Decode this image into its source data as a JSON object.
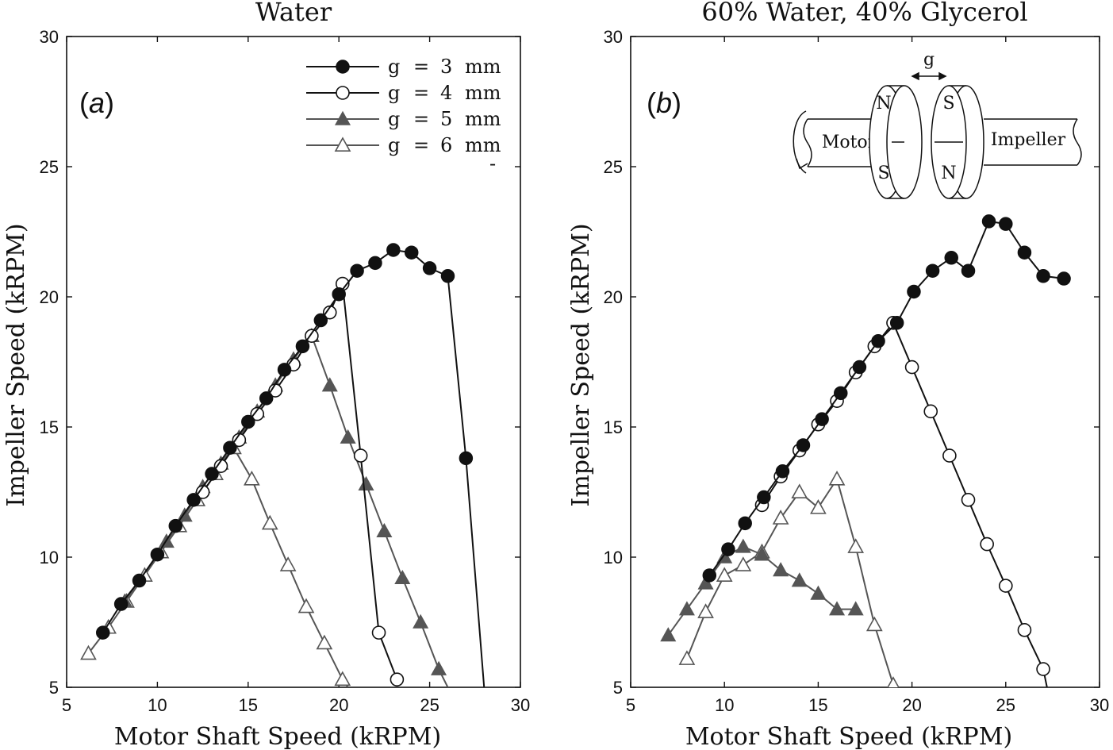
{
  "chart_data": [
    {
      "type": "line",
      "panel": "(a)",
      "panel_letter": "a",
      "title": "Water",
      "xlabel": "Motor Shaft Speed (kRPM)",
      "ylabel": "Impeller Speed (kRPM)",
      "xlim": [
        5,
        30
      ],
      "ylim": [
        5,
        30
      ],
      "xticks": [
        5,
        10,
        15,
        20,
        25,
        30
      ],
      "yticks": [
        5,
        10,
        15,
        20,
        25,
        30
      ],
      "legend": {
        "position": "top-right",
        "minus_glyph": "-"
      },
      "series": [
        {
          "name": "g = 3 mm",
          "g": "g",
          "eq": "=",
          "num": "3",
          "unit": "mm",
          "marker": "filled-circle",
          "color": "#111111",
          "x": [
            7,
            8,
            9,
            10,
            11,
            12,
            13,
            14,
            15,
            16,
            17,
            18,
            19,
            20,
            21,
            22,
            23,
            24,
            25,
            26,
            27,
            28
          ],
          "y": [
            7.1,
            8.2,
            9.1,
            10.1,
            11.2,
            12.2,
            13.2,
            14.2,
            15.2,
            16.1,
            17.2,
            18.1,
            19.1,
            20.1,
            21.0,
            21.3,
            21.8,
            21.7,
            21.1,
            20.8,
            13.8,
            5.0
          ]
        },
        {
          "name": "g = 4 mm",
          "g": "g",
          "eq": "=",
          "num": "4",
          "unit": "mm",
          "marker": "open-circle",
          "color": "#111111",
          "x": [
            12.5,
            13.5,
            14.5,
            15.5,
            16.5,
            17.5,
            18.5,
            19.5,
            20.2,
            21.2,
            22.2,
            23.2
          ],
          "y": [
            12.5,
            13.5,
            14.5,
            15.5,
            16.4,
            17.4,
            18.5,
            19.4,
            20.5,
            13.9,
            7.1,
            5.3
          ]
        },
        {
          "name": "g = 5 mm",
          "g": "g",
          "eq": "=",
          "num": "5",
          "unit": "mm",
          "marker": "filled-triangle",
          "color": "#555555",
          "x": [
            8.2,
            10.5,
            11.5,
            12.5,
            13.5,
            14.5,
            15.5,
            16.5,
            17.5,
            18.5,
            19.5,
            20.5,
            21.5,
            22.5,
            23.5,
            24.5,
            25.5,
            26.0
          ],
          "y": [
            8.3,
            10.6,
            11.6,
            12.7,
            13.6,
            14.6,
            15.6,
            16.6,
            17.6,
            18.5,
            16.6,
            14.6,
            12.8,
            11.0,
            9.2,
            7.5,
            5.7,
            5.0
          ]
        },
        {
          "name": "g = 6 mm",
          "g": "g",
          "eq": "=",
          "num": "6",
          "unit": "mm",
          "marker": "open-triangle",
          "color": "#555555",
          "x": [
            6.2,
            7.3,
            8.3,
            9.3,
            10.2,
            11.2,
            12.2,
            13.2,
            14.2,
            15.2,
            16.2,
            17.2,
            18.2,
            19.2,
            20.2,
            20.5
          ],
          "y": [
            6.3,
            7.3,
            8.3,
            9.3,
            10.2,
            11.2,
            12.2,
            13.2,
            14.2,
            13.0,
            11.3,
            9.7,
            8.1,
            6.7,
            5.3,
            5.0
          ]
        }
      ]
    },
    {
      "type": "line",
      "panel": "(b)",
      "panel_letter": "b",
      "title": "60% Water, 40% Glycerol",
      "xlabel": "Motor Shaft Speed (kRPM)",
      "ylabel": "Impeller Speed (kRPM)",
      "xlim": [
        5,
        30
      ],
      "ylim": [
        5,
        30
      ],
      "xticks": [
        5,
        10,
        15,
        20,
        25,
        30
      ],
      "yticks": [
        5,
        10,
        15,
        20,
        25,
        30
      ],
      "inset_diagram": {
        "gap_label": "g",
        "north": "N",
        "south": "S",
        "motor_label": "Motor",
        "impeller_label": "Impeller"
      },
      "series": [
        {
          "name": "g = 3 mm",
          "marker": "filled-circle",
          "color": "#111111",
          "x": [
            9.2,
            10.2,
            11.1,
            12.1,
            13.1,
            14.2,
            15.2,
            16.2,
            17.2,
            18.2,
            19.2,
            20.1,
            21.1,
            22.1,
            23.0,
            24.1,
            25.0,
            26.0,
            27.0,
            28.1
          ],
          "y": [
            9.3,
            10.3,
            11.3,
            12.3,
            13.3,
            14.3,
            15.3,
            16.3,
            17.3,
            18.3,
            19.0,
            20.2,
            21.0,
            21.5,
            21.0,
            22.9,
            22.8,
            21.7,
            20.8,
            20.7
          ]
        },
        {
          "name": "g = 4 mm",
          "marker": "open-circle",
          "color": "#111111",
          "x": [
            12.0,
            13.0,
            14.0,
            15.0,
            16.0,
            17.0,
            18.0,
            19.0,
            20.0,
            21.0,
            22.0,
            23.0,
            24.0,
            25.0,
            26.0,
            27.0,
            27.2
          ],
          "y": [
            12.0,
            13.1,
            14.1,
            15.1,
            16.0,
            17.1,
            18.1,
            19.0,
            17.3,
            15.6,
            13.9,
            12.2,
            10.5,
            8.9,
            7.2,
            5.7,
            5.0
          ]
        },
        {
          "name": "g = 5 mm",
          "marker": "filled-triangle",
          "color": "#555555",
          "x": [
            7.0,
            8.0,
            9.0,
            10.0,
            11.0,
            12.0,
            13.0,
            14.0,
            15.0,
            16.0,
            17.0
          ],
          "y": [
            7.0,
            8.0,
            9.0,
            10.0,
            10.4,
            10.1,
            9.5,
            9.1,
            8.6,
            8.0,
            8.0
          ]
        },
        {
          "name": "g = 6 mm",
          "marker": "open-triangle",
          "color": "#555555",
          "x": [
            8.0,
            9.0,
            10.0,
            11.0,
            12.0,
            13.0,
            14.0,
            15.0,
            16.0,
            17.0,
            18.0,
            19.0
          ],
          "y": [
            6.1,
            7.9,
            9.3,
            9.7,
            10.2,
            11.5,
            12.5,
            11.9,
            13.0,
            10.4,
            7.4,
            5.1
          ]
        }
      ]
    }
  ]
}
